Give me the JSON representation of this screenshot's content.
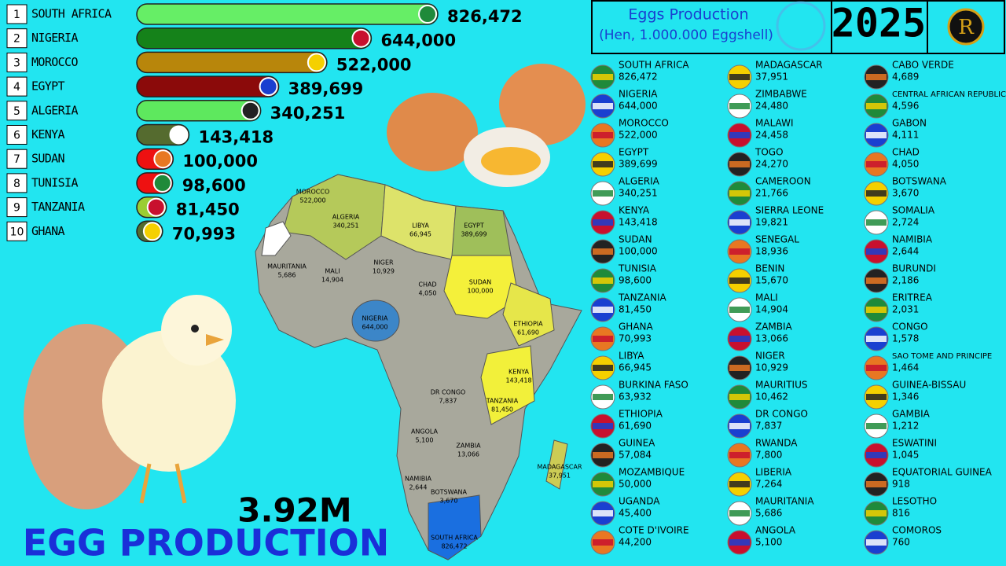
{
  "chart_data": {
    "type": "bar",
    "orientation": "horizontal",
    "title": "Eggs Production",
    "subtitle": "(Hen, 1.000.000 Eggshell)",
    "year": "2025",
    "total": "3.92M",
    "caption": "EGG PRODUCTION",
    "ranks": [
      "1",
      "2",
      "3",
      "4",
      "5",
      "6",
      "7",
      "8",
      "9",
      "10"
    ],
    "categories": [
      "SOUTH AFRICA",
      "NIGERIA",
      "MOROCCO",
      "EGYPT",
      "ALGERIA",
      "KENYA",
      "SUDAN",
      "TUNISIA",
      "TANZANIA",
      "GHANA"
    ],
    "values": [
      826472,
      644000,
      522000,
      389699,
      340251,
      143418,
      100000,
      98600,
      81450,
      70993
    ],
    "value_labels": [
      "826,472",
      "644,000",
      "522,000",
      "389,699",
      "340,251",
      "143,418",
      "100,000",
      "98,600",
      "81,450",
      "70,993"
    ],
    "colors": [
      "#66ee66",
      "#15821a",
      "#b8860b",
      "#8b0a0a",
      "#5ee85e",
      "#556b2f",
      "#ee1111",
      "#ee1111",
      "#9acd32",
      "#556b2f"
    ],
    "xlim": [
      0,
      826472
    ]
  },
  "logo": "R",
  "country_list": [
    {
      "name": "SOUTH AFRICA",
      "value": "826,472"
    },
    {
      "name": "NIGERIA",
      "value": "644,000"
    },
    {
      "name": "MOROCCO",
      "value": "522,000"
    },
    {
      "name": "EGYPT",
      "value": "389,699"
    },
    {
      "name": "ALGERIA",
      "value": "340,251"
    },
    {
      "name": "KENYA",
      "value": "143,418"
    },
    {
      "name": "SUDAN",
      "value": "100,000"
    },
    {
      "name": "TUNISIA",
      "value": "98,600"
    },
    {
      "name": "TANZANIA",
      "value": "81,450"
    },
    {
      "name": "GHANA",
      "value": "70,993"
    },
    {
      "name": "LIBYA",
      "value": "66,945"
    },
    {
      "name": "BURKINA FASO",
      "value": "63,932"
    },
    {
      "name": "ETHIOPIA",
      "value": "61,690"
    },
    {
      "name": "GUINEA",
      "value": "57,084"
    },
    {
      "name": "MOZAMBIQUE",
      "value": "50,000"
    },
    {
      "name": "UGANDA",
      "value": "45,400"
    },
    {
      "name": "COTE D'IVOIRE",
      "value": "44,200"
    },
    {
      "name": "MADAGASCAR",
      "value": "37,951"
    },
    {
      "name": "ZIMBABWE",
      "value": "24,480"
    },
    {
      "name": "MALAWI",
      "value": "24,458"
    },
    {
      "name": "TOGO",
      "value": "24,270"
    },
    {
      "name": "CAMEROON",
      "value": "21,766"
    },
    {
      "name": "SIERRA LEONE",
      "value": "19,821"
    },
    {
      "name": "SENEGAL",
      "value": "18,936"
    },
    {
      "name": "BENIN",
      "value": "15,670"
    },
    {
      "name": "MALI",
      "value": "14,904"
    },
    {
      "name": "ZAMBIA",
      "value": "13,066"
    },
    {
      "name": "NIGER",
      "value": "10,929"
    },
    {
      "name": "MAURITIUS",
      "value": "10,462"
    },
    {
      "name": "DR CONGO",
      "value": "7,837"
    },
    {
      "name": "RWANDA",
      "value": "7,800"
    },
    {
      "name": "LIBERIA",
      "value": "7,264"
    },
    {
      "name": "MAURITANIA",
      "value": "5,686"
    },
    {
      "name": "ANGOLA",
      "value": "5,100"
    },
    {
      "name": "CABO VERDE",
      "value": "4,689"
    },
    {
      "name": "CENTRAL AFRICAN REPUBLIC",
      "value": "4,596"
    },
    {
      "name": "GABON",
      "value": "4,111"
    },
    {
      "name": "CHAD",
      "value": "4,050"
    },
    {
      "name": "BOTSWANA",
      "value": "3,670"
    },
    {
      "name": "SOMALIA",
      "value": "2,724"
    },
    {
      "name": "NAMIBIA",
      "value": "2,644"
    },
    {
      "name": "BURUNDI",
      "value": "2,186"
    },
    {
      "name": "ERITREA",
      "value": "2,031"
    },
    {
      "name": "CONGO",
      "value": "1,578"
    },
    {
      "name": "SAO TOME AND PRINCIPE",
      "value": "1,464"
    },
    {
      "name": "GUINEA-BISSAU",
      "value": "1,346"
    },
    {
      "name": "GAMBIA",
      "value": "1,212"
    },
    {
      "name": "ESWATINI",
      "value": "1,045"
    },
    {
      "name": "EQUATORIAL GUINEA",
      "value": "918"
    },
    {
      "name": "LESOTHO",
      "value": "816"
    },
    {
      "name": "COMOROS",
      "value": "760"
    }
  ],
  "map_labels": [
    {
      "name": "MOROCCO",
      "value": "522,000"
    },
    {
      "name": "ALGERIA",
      "value": "340,251"
    },
    {
      "name": "LIBYA",
      "value": "66,945"
    },
    {
      "name": "EGYPT",
      "value": "389,699"
    },
    {
      "name": "MAURITANIA",
      "value": "5,686"
    },
    {
      "name": "MALI",
      "value": "14,904"
    },
    {
      "name": "NIGER",
      "value": "10,929"
    },
    {
      "name": "CHAD",
      "value": "4,050"
    },
    {
      "name": "SUDAN",
      "value": "100,000"
    },
    {
      "name": "NIGERIA",
      "value": "644,000"
    },
    {
      "name": "ETHIOPIA",
      "value": "61,690"
    },
    {
      "name": "KENYA",
      "value": "143,418"
    },
    {
      "name": "TANZANIA",
      "value": "81,450"
    },
    {
      "name": "DR CONGO",
      "value": "7,837"
    },
    {
      "name": "ANGOLA",
      "value": "5,100"
    },
    {
      "name": "ZAMBIA",
      "value": "13,066"
    },
    {
      "name": "NAMIBIA",
      "value": "2,644"
    },
    {
      "name": "BOTSWANA",
      "value": "3,670"
    },
    {
      "name": "SOUTH AFRICA",
      "value": "826,472"
    },
    {
      "name": "MADAGASCAR",
      "value": "37,951"
    }
  ]
}
